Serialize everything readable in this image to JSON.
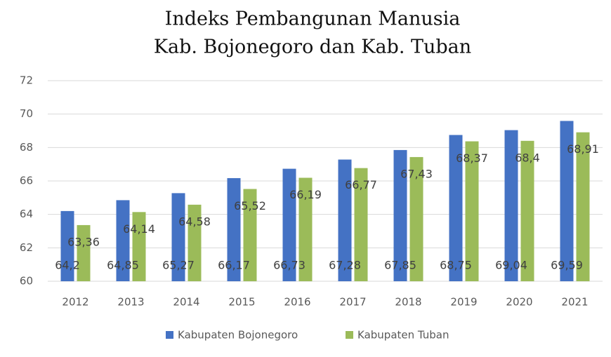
{
  "chart_data": {
    "type": "bar",
    "title": [
      "Indeks Pembangunan Manusia",
      "Kab. Bojonegoro dan Kab. Tuban"
    ],
    "categories": [
      "2012",
      "2013",
      "2014",
      "2015",
      "2016",
      "2017",
      "2018",
      "2019",
      "2020",
      "2021"
    ],
    "series": [
      {
        "name": "Kabupaten Bojonegoro",
        "color": "#4472c4",
        "values": [
          64.2,
          64.85,
          65.27,
          66.17,
          66.73,
          67.28,
          67.85,
          68.75,
          69.04,
          69.59
        ],
        "value_labels": [
          "64,2",
          "64,85",
          "65,27",
          "66,17",
          "66,73",
          "67,28",
          "67,85",
          "68,75",
          "69,04",
          "69,59"
        ]
      },
      {
        "name": "Kabupaten Tuban",
        "color": "#9bbb59",
        "values": [
          63.36,
          64.14,
          64.58,
          65.52,
          66.19,
          66.77,
          67.43,
          68.37,
          68.4,
          68.91
        ],
        "value_labels": [
          "63,36",
          "64,14",
          "64,58",
          "65,52",
          "66,19",
          "66,77",
          "67,43",
          "68,37",
          "68,4",
          "68,91"
        ]
      }
    ],
    "ylim": [
      60,
      72
    ],
    "yticks": [
      60,
      62,
      64,
      66,
      68,
      70,
      72
    ],
    "grid": true,
    "legend": "bottom"
  }
}
